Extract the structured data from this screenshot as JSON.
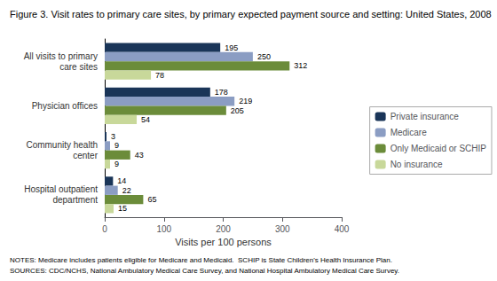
{
  "chart_data": {
    "type": "bar",
    "orientation": "horizontal",
    "title": "Figure 3. Visit rates to primary care sites, by primary expected payment source and setting: United States, 2008",
    "categories": [
      "All visits to primary\ncare sites",
      "Physician offices",
      "Community health\ncenter",
      "Hospital outpatient\ndepartment"
    ],
    "series": [
      {
        "name": "Private insurance",
        "color": "#1a3558",
        "values": [
          195,
          178,
          3,
          14
        ]
      },
      {
        "name": "Medicare",
        "color": "#8b9dc3",
        "values": [
          250,
          219,
          9,
          22
        ]
      },
      {
        "name": "Only Medicaid or SCHIP",
        "color": "#6b8c3a",
        "values": [
          312,
          205,
          43,
          65
        ]
      },
      {
        "name": "No insurance",
        "color": "#c8d89a",
        "values": [
          78,
          54,
          9,
          15
        ]
      }
    ],
    "xlabel": "Visits per 100 persons",
    "xlim": [
      0,
      400
    ],
    "xticks": [
      0,
      100,
      200,
      300,
      400
    ],
    "data_labels": true,
    "legend": "right",
    "grid": false,
    "annotations": [
      "NOTES: Medicare includes patients eligible for Medicare and Medicaid.  SCHIP is State Children's Health Insurance Plan.",
      "SOURCES: CDC/NCHS, National Ambulatory Medical Care Survey, and National Hospital Ambulatory Medical Care Survey."
    ]
  }
}
